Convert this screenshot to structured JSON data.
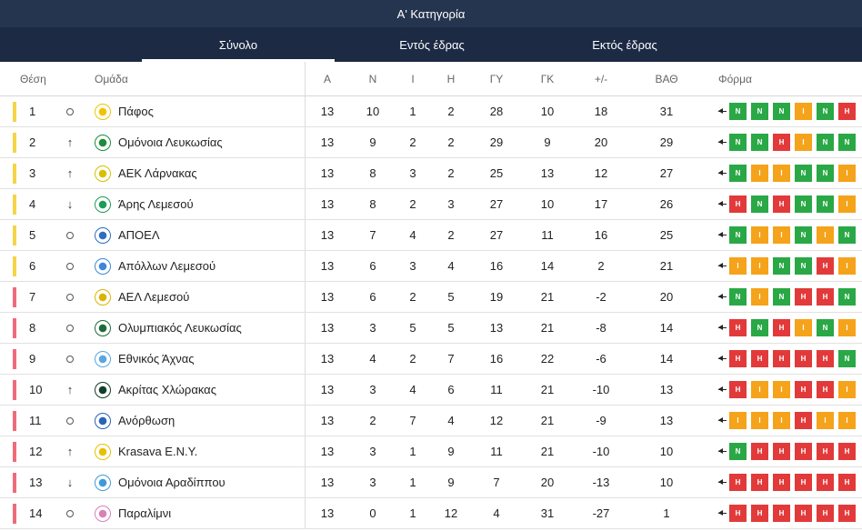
{
  "title": "Α' Κατηγορία",
  "tabs": [
    "Σύνολο",
    "Εντός έδρας",
    "Εκτός έδρας"
  ],
  "columns": [
    "Θέση",
    "Ομάδα",
    "Α",
    "Ν",
    "Ι",
    "Η",
    "ΓΥ",
    "ΓΚ",
    "+/-",
    "ΒΑΘ",
    "Φόρμα"
  ],
  "colors": {
    "bar_yellow": "#f5d547",
    "bar_red": "#ef6b7a",
    "win": "#2aa846",
    "draw": "#f5a31a",
    "loss": "#e23a3a"
  },
  "rows": [
    {
      "pos": "1",
      "trend": "same",
      "team": "Πάφος",
      "crest": "#f2c200",
      "p": "13",
      "w": "10",
      "d": "1",
      "l": "2",
      "gf": "28",
      "ga": "10",
      "gd": "18",
      "pts": "31",
      "form": [
        "Ν",
        "Ν",
        "Ν",
        "Ι",
        "Ν",
        "Η"
      ],
      "bar": "yellow"
    },
    {
      "pos": "2",
      "trend": "up",
      "team": "Ομόνοια Λευκωσίας",
      "crest": "#1e8c3a",
      "p": "13",
      "w": "9",
      "d": "2",
      "l": "2",
      "gf": "29",
      "ga": "9",
      "gd": "20",
      "pts": "29",
      "form": [
        "Ν",
        "Ν",
        "Η",
        "Ι",
        "Ν",
        "Ν"
      ],
      "bar": "yellow"
    },
    {
      "pos": "3",
      "trend": "up",
      "team": "ΑΕΚ Λάρνακας",
      "crest": "#d6c000",
      "p": "13",
      "w": "8",
      "d": "3",
      "l": "2",
      "gf": "25",
      "ga": "13",
      "gd": "12",
      "pts": "27",
      "form": [
        "Ν",
        "Ι",
        "Ι",
        "Ν",
        "Ν",
        "Ι"
      ],
      "bar": "yellow"
    },
    {
      "pos": "4",
      "trend": "down",
      "team": "Άρης Λεμεσού",
      "crest": "#1e9c55",
      "p": "13",
      "w": "8",
      "d": "2",
      "l": "3",
      "gf": "27",
      "ga": "10",
      "gd": "17",
      "pts": "26",
      "form": [
        "Η",
        "Ν",
        "Η",
        "Ν",
        "Ν",
        "Ι"
      ],
      "bar": "yellow"
    },
    {
      "pos": "5",
      "trend": "same",
      "team": "ΑΠΟΕΛ",
      "crest": "#2c6cc4",
      "p": "13",
      "w": "7",
      "d": "4",
      "l": "2",
      "gf": "27",
      "ga": "11",
      "gd": "16",
      "pts": "25",
      "form": [
        "Ν",
        "Ι",
        "Ι",
        "Ν",
        "Ι",
        "Ν"
      ],
      "bar": "yellow"
    },
    {
      "pos": "6",
      "trend": "same",
      "team": "Απόλλων Λεμεσού",
      "crest": "#3f86d8",
      "p": "13",
      "w": "6",
      "d": "3",
      "l": "4",
      "gf": "16",
      "ga": "14",
      "gd": "2",
      "pts": "21",
      "form": [
        "Ι",
        "Ι",
        "Ν",
        "Ν",
        "Η",
        "Ι"
      ],
      "bar": "yellow"
    },
    {
      "pos": "7",
      "trend": "same",
      "team": "ΑΕΛ Λεμεσού",
      "crest": "#d9b400",
      "p": "13",
      "w": "6",
      "d": "2",
      "l": "5",
      "gf": "19",
      "ga": "21",
      "gd": "-2",
      "pts": "20",
      "form": [
        "Ν",
        "Ι",
        "Ν",
        "Η",
        "Η",
        "Ν"
      ],
      "bar": "red"
    },
    {
      "pos": "8",
      "trend": "same",
      "team": "Ολυμπιακός Λευκωσίας",
      "crest": "#1d6b3a",
      "p": "13",
      "w": "3",
      "d": "5",
      "l": "5",
      "gf": "13",
      "ga": "21",
      "gd": "-8",
      "pts": "14",
      "form": [
        "Η",
        "Ν",
        "Η",
        "Ι",
        "Ν",
        "Ι"
      ],
      "bar": "red"
    },
    {
      "pos": "9",
      "trend": "same",
      "team": "Εθνικός Άχνας",
      "crest": "#5aa6e0",
      "p": "13",
      "w": "4",
      "d": "2",
      "l": "7",
      "gf": "16",
      "ga": "22",
      "gd": "-6",
      "pts": "14",
      "form": [
        "Η",
        "Η",
        "Η",
        "Η",
        "Η",
        "Ν"
      ],
      "bar": "red"
    },
    {
      "pos": "10",
      "trend": "up",
      "team": "Ακρίτας Χλώρακας",
      "crest": "#123f2a",
      "p": "13",
      "w": "3",
      "d": "4",
      "l": "6",
      "gf": "11",
      "ga": "21",
      "gd": "-10",
      "pts": "13",
      "form": [
        "Η",
        "Ι",
        "Ι",
        "Η",
        "Η",
        "Ι"
      ],
      "bar": "red"
    },
    {
      "pos": "11",
      "trend": "same",
      "team": "Ανόρθωση",
      "crest": "#2a62b8",
      "p": "13",
      "w": "2",
      "d": "7",
      "l": "4",
      "gf": "12",
      "ga": "21",
      "gd": "-9",
      "pts": "13",
      "form": [
        "Ι",
        "Ι",
        "Ι",
        "Η",
        "Ι",
        "Ι"
      ],
      "bar": "red"
    },
    {
      "pos": "12",
      "trend": "up",
      "team": "Krasava E.N.Y.",
      "crest": "#e8c000",
      "p": "13",
      "w": "3",
      "d": "1",
      "l": "9",
      "gf": "11",
      "ga": "21",
      "gd": "-10",
      "pts": "10",
      "form": [
        "Ν",
        "Η",
        "Η",
        "Η",
        "Η",
        "Η"
      ],
      "bar": "red"
    },
    {
      "pos": "13",
      "trend": "down",
      "team": "Ομόνοια Αραδίππου",
      "crest": "#3f9ad8",
      "p": "13",
      "w": "3",
      "d": "1",
      "l": "9",
      "gf": "7",
      "ga": "20",
      "gd": "-13",
      "pts": "10",
      "form": [
        "Η",
        "Η",
        "Η",
        "Η",
        "Η",
        "Η"
      ],
      "bar": "red"
    },
    {
      "pos": "14",
      "trend": "same",
      "team": "Παραλίμνι",
      "crest": "#d980b8",
      "p": "13",
      "w": "0",
      "d": "1",
      "l": "12",
      "gf": "4",
      "ga": "31",
      "gd": "-27",
      "pts": "1",
      "form": [
        "Η",
        "Η",
        "Η",
        "Η",
        "Η",
        "Η"
      ],
      "bar": "red"
    }
  ]
}
